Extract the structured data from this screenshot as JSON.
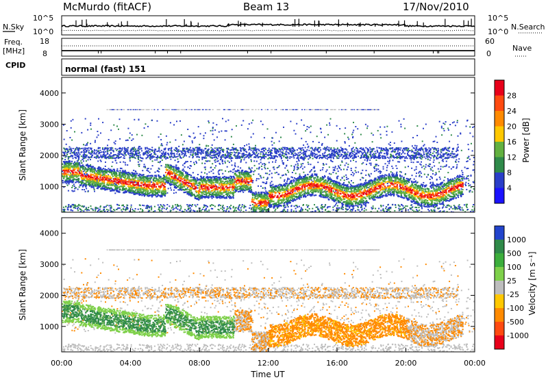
{
  "header": {
    "station": "McMurdo (fitACF)",
    "beam": "Beam 13",
    "date": "17/Nov/2010"
  },
  "top_panels": {
    "nsky_label": "N.Sky",
    "nsky_ticks": [
      "10^5",
      "10^0"
    ],
    "nsearch_label": "N.Search",
    "nsearch_ticks": [
      "10^5",
      "10^0"
    ],
    "freq_label": "Freq.",
    "freq_unit": "[MHz]",
    "freq_ticks": [
      "18",
      "8"
    ],
    "nave_label": "Nave",
    "nave_ticks": [
      "60",
      "0"
    ],
    "cpid_label": "CPID",
    "cpid_value": "normal (fast) 151"
  },
  "chart_data": [
    {
      "type": "heatmap",
      "panel": "power",
      "ylabel": "Slant Range [km]",
      "xlabel": "Time UT",
      "yticks": [
        "4000",
        "3000",
        "2000",
        "1000"
      ],
      "ylim": [
        180,
        4500
      ],
      "xticks": [
        "00:00",
        "04:00",
        "08:00",
        "12:00",
        "16:00",
        "20:00",
        "00:00"
      ],
      "xlim_hours": [
        0,
        24
      ],
      "colorbar": {
        "label": "Power [dB]",
        "ticks": [
          "28",
          "24",
          "20",
          "16",
          "12",
          "8",
          "4"
        ],
        "colors": [
          "#e8001a",
          "#ff4a10",
          "#ff8a00",
          "#ffc800",
          "#62b040",
          "#2f8a4a",
          "#2a3ec8",
          "#1a12ff"
        ]
      }
    },
    {
      "type": "heatmap",
      "panel": "velocity",
      "ylabel": "Slant Range [km]",
      "xlabel": "Time UT",
      "yticks": [
        "4000",
        "3000",
        "2000",
        "1000"
      ],
      "ylim": [
        180,
        4500
      ],
      "xticks": [
        "00:00",
        "04:00",
        "08:00",
        "12:00",
        "16:00",
        "20:00",
        "00:00"
      ],
      "xlim_hours": [
        0,
        24
      ],
      "colorbar": {
        "label": "Velocity [m s⁻¹]",
        "ticks": [
          "1000",
          "500",
          "100",
          "25",
          "-25",
          "-100",
          "-500",
          "-1000"
        ],
        "colors": [
          "#2244cc",
          "#2f8a4a",
          "#3cae3c",
          "#7ed04a",
          "#bdbdbd",
          "#ffc800",
          "#ff8a00",
          "#ff4a10",
          "#e8001a"
        ]
      }
    }
  ],
  "colors": {
    "power_noise": "#2a3ec8",
    "power_band": "#2f8a4a",
    "vel_green": "#5a9e5a",
    "vel_orange": "#f07e10",
    "vel_grey": "#b8b8b8"
  }
}
